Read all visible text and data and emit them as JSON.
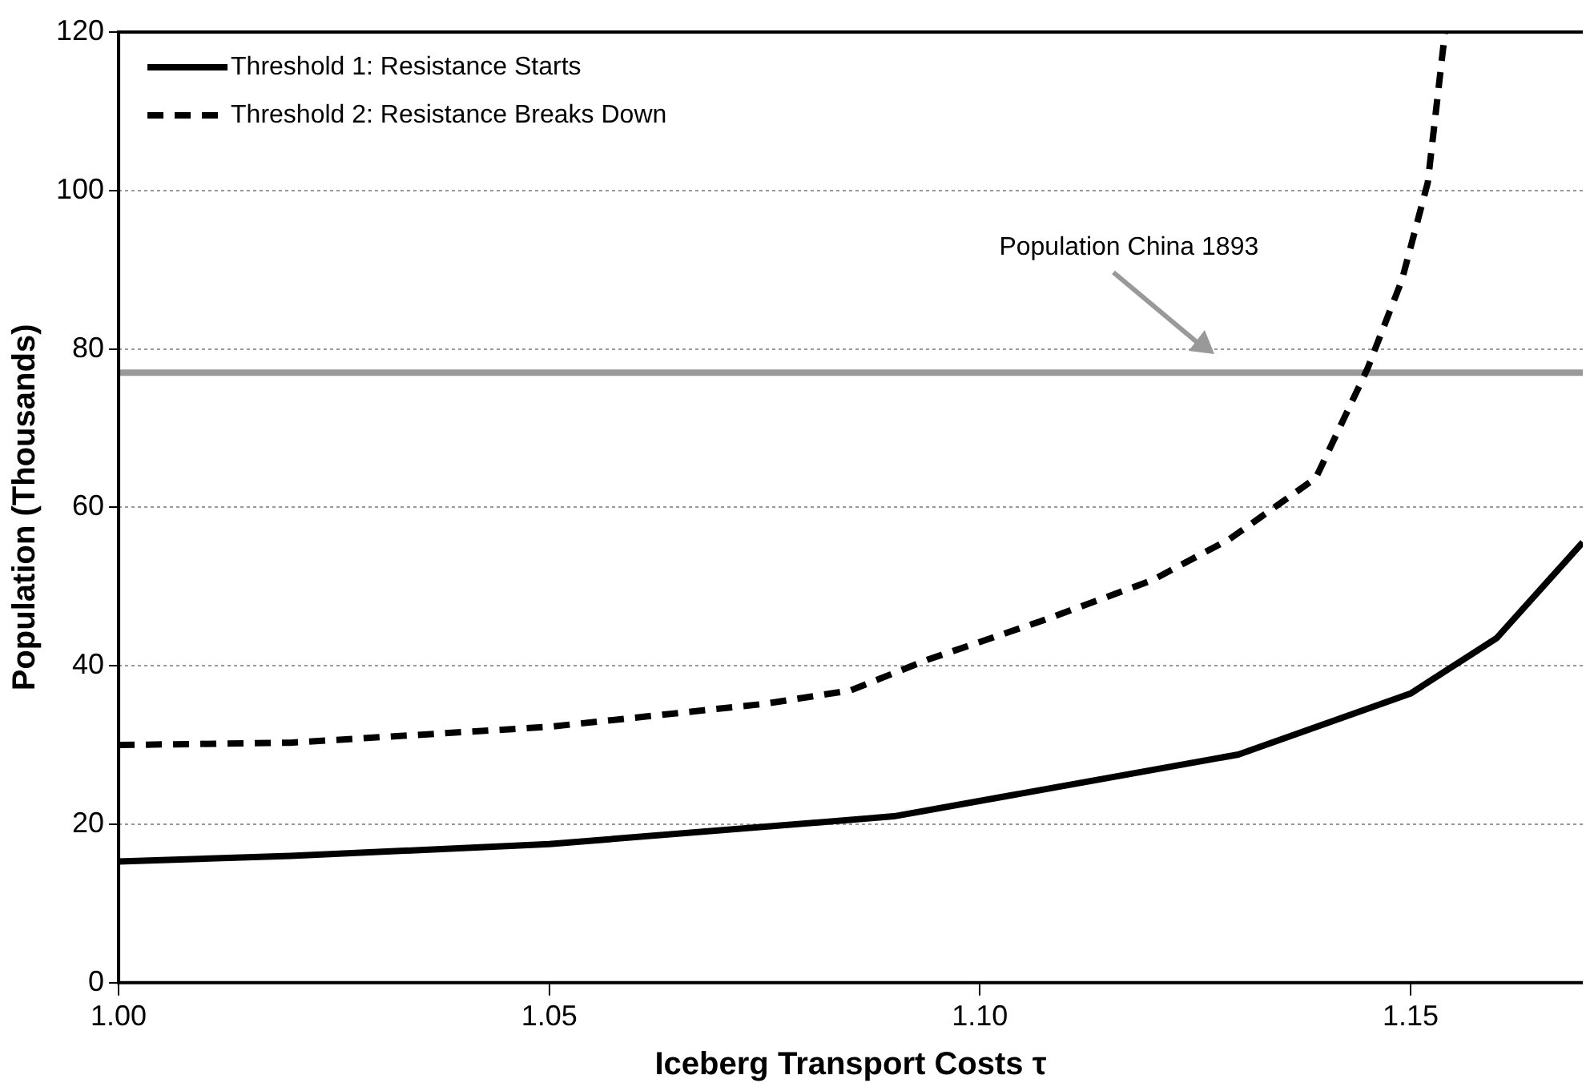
{
  "chart_data": {
    "type": "line",
    "xlabel": "Iceberg Transport Costs τ",
    "ylabel": "Population (Thousands)",
    "xlim": [
      1,
      1.17
    ],
    "xticks": [
      {
        "value": 1,
        "label": "1.00"
      },
      {
        "value": 1.05,
        "label": "1.05"
      },
      {
        "value": 1.1,
        "label": "1.10"
      },
      {
        "value": 1.15,
        "label": "1.15"
      }
    ],
    "ylim": [
      0,
      120
    ],
    "yticks": [
      0,
      20,
      40,
      60,
      80,
      100,
      120
    ],
    "grid": "y",
    "legend": "top left",
    "marker": "none",
    "series": [
      {
        "name": "Threshold 1: Resistance Starts",
        "color": "#000000",
        "line_style": "solid",
        "x": [
          1,
          1.02,
          1.05,
          1.09,
          1.13,
          1.15,
          1.16,
          1.17
        ],
        "values": [
          15.3,
          16,
          17.5,
          21,
          28.8,
          36.5,
          43.5,
          55.6
        ]
      },
      {
        "name": "Threshold 2: Resistance Breaks Down",
        "color": "#000000",
        "line_style": "dashed",
        "x": [
          1,
          1.02,
          1.05,
          1.075,
          1.085,
          1.094,
          1.107,
          1.12,
          1.129,
          1.139,
          1.145,
          1.149,
          1.152,
          1.154
        ],
        "values": [
          30,
          30.3,
          32.3,
          35.2,
          36.9,
          40.8,
          45.6,
          50.8,
          56,
          63.7,
          77.5,
          88.7,
          101,
          120
        ]
      }
    ],
    "ref_lines": [
      {
        "axis": "y",
        "value": 77,
        "color": "#999999",
        "line_style": "solid"
      }
    ],
    "annotations": [
      "Population China 1893"
    ]
  }
}
